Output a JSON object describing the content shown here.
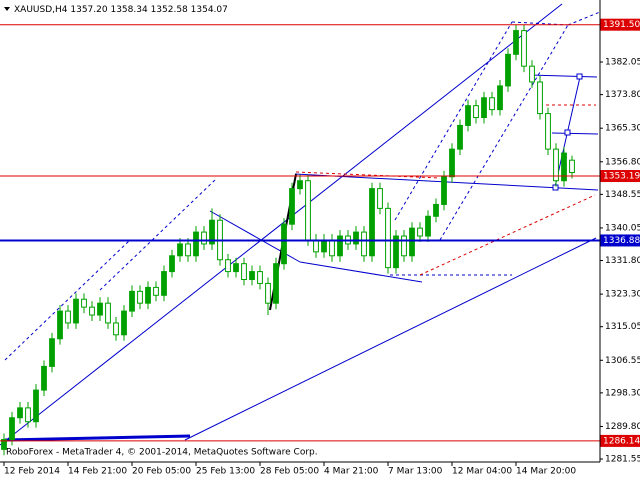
{
  "chart_data": {
    "type": "candlestick",
    "header": {
      "symbol": "XAUUSD,H4",
      "ohlc": [
        "1357.20",
        "1358.34",
        "1352.58",
        "1354.07"
      ]
    },
    "footer": "RoboForex - MetaTrader 4, © 2001-2014, MetaQuotes Software Corp.",
    "up_color": "#00a000",
    "down_color": "#ffffff",
    "wick_color": "#00a000",
    "xlim": [
      -0.5,
      74.5
    ],
    "xticks": [
      {
        "value": 0,
        "label": "12 Feb 2014"
      },
      {
        "value": 8,
        "label": "14 Feb 21:00"
      },
      {
        "value": 16,
        "label": "20 Feb 05:00"
      },
      {
        "value": 24,
        "label": "25 Feb 13:00"
      },
      {
        "value": 32,
        "label": "28 Feb 05:00"
      },
      {
        "value": 40,
        "label": "4 Mar 21:00"
      },
      {
        "value": 48,
        "label": "7 Mar 13:00"
      },
      {
        "value": 56,
        "label": "12 Mar 04:00"
      },
      {
        "value": 64,
        "label": "14 Mar 20:00"
      }
    ],
    "ylim": [
      1280.8,
      1397.75
    ],
    "yticks": [
      {
        "value": 1281.55,
        "label": "1281.55"
      },
      {
        "value": 1289.8,
        "label": "1289.80"
      },
      {
        "value": 1298.3,
        "label": "1298.30"
      },
      {
        "value": 1306.55,
        "label": "1306.55"
      },
      {
        "value": 1315.05,
        "label": "1315.05"
      },
      {
        "value": 1323.3,
        "label": "1323.30"
      },
      {
        "value": 1331.8,
        "label": "1331.80"
      },
      {
        "value": 1340.05,
        "label": "1340.05"
      },
      {
        "value": 1348.55,
        "label": "1348.55"
      },
      {
        "value": 1356.8,
        "label": "1356.80"
      },
      {
        "value": 1365.3,
        "label": "1365.30"
      },
      {
        "value": 1373.8,
        "label": "1373.80"
      },
      {
        "value": 1382.05,
        "label": "1382.05"
      }
    ],
    "levels": [
      {
        "value": 1391.5,
        "label": "1391.50",
        "color": "#dd0000",
        "box": "#dd0000",
        "text_color": "#ffffff"
      },
      {
        "value": 1353.19,
        "label": "1353.19",
        "color": "#dd0000",
        "box": "#dd0000",
        "text_color": "#ffffff"
      },
      {
        "value": 1336.88,
        "label": "1336.88",
        "color": "#0000cc",
        "box": "#0000cc",
        "text_color": "#ffffff"
      },
      {
        "value": 1286.14,
        "label": "1286.14",
        "color": "#dd0000",
        "box": "#dd0000",
        "text_color": "#ffffff"
      }
    ],
    "open": [
      1284,
      1286.5,
      1292,
      1294.5,
      1291,
      1299,
      1305,
      1312,
      1319,
      1316,
      1322,
      1320,
      1318,
      1321,
      1316,
      1313,
      1319,
      1324,
      1321,
      1325,
      1323,
      1329,
      1333,
      1336,
      1333,
      1339,
      1336,
      1342,
      1332,
      1329,
      1331,
      1327,
      1329,
      1326,
      1321,
      1331,
      1341,
      1350,
      1352,
      1337,
      1334,
      1337,
      1333,
      1338,
      1336,
      1339,
      1333,
      1350,
      1345,
      1330,
      1338,
      1333,
      1340,
      1338,
      1343,
      1346,
      1353,
      1360,
      1366,
      1371,
      1368,
      1373,
      1370,
      1376,
      1384,
      1390,
      1381,
      1377,
      1369,
      1360,
      1352,
      1357.2
    ],
    "high": [
      1288,
      1293.5,
      1296,
      1296,
      1300.5,
      1306.5,
      1313.5,
      1320.5,
      1320.5,
      1323.5,
      1323.5,
      1321.5,
      1322.5,
      1322.5,
      1317.5,
      1320.5,
      1325.5,
      1325.5,
      1326.5,
      1326.5,
      1330.5,
      1334.5,
      1337.5,
      1337.5,
      1340.5,
      1340.5,
      1345,
      1343.5,
      1333.5,
      1332.5,
      1332.5,
      1330.5,
      1330.5,
      1327.5,
      1332.5,
      1342.5,
      1351.5,
      1353.5,
      1353.5,
      1338.5,
      1338.5,
      1338.5,
      1339.5,
      1339.5,
      1340.5,
      1340.5,
      1351.5,
      1351.5,
      1346.5,
      1339.5,
      1339.5,
      1341.5,
      1341.5,
      1344.5,
      1347.5,
      1354.5,
      1361.5,
      1367.5,
      1372.5,
      1372.5,
      1374.5,
      1374.5,
      1377.5,
      1385.5,
      1391.5,
      1391.5,
      1382.5,
      1378.5,
      1370.5,
      1361.5,
      1360.5,
      1358.34
    ],
    "low": [
      1282.5,
      1285,
      1290.5,
      1289.5,
      1289.5,
      1297.5,
      1303.5,
      1310.5,
      1314.5,
      1314.5,
      1318.5,
      1316.5,
      1316.5,
      1314.5,
      1311.5,
      1311.5,
      1317.5,
      1319.5,
      1319.5,
      1321.5,
      1321.5,
      1327.5,
      1331.5,
      1331.5,
      1331.5,
      1334.5,
      1334.5,
      1330.5,
      1327.5,
      1327.5,
      1325.5,
      1325.5,
      1324.5,
      1318,
      1319.5,
      1329.5,
      1339.5,
      1348.5,
      1335.5,
      1332.5,
      1332.5,
      1331.5,
      1331.5,
      1334.5,
      1334.5,
      1331.5,
      1331.5,
      1343.5,
      1328.5,
      1328.5,
      1331.5,
      1331.5,
      1336.5,
      1336.5,
      1341.5,
      1344.5,
      1351.5,
      1358.5,
      1364.5,
      1366.5,
      1366.5,
      1368.5,
      1368.5,
      1374.5,
      1382.5,
      1379.5,
      1375.5,
      1367.5,
      1358.5,
      1350.5,
      1350.5,
      1352.58
    ],
    "close": [
      1286.5,
      1292,
      1294.5,
      1291,
      1299,
      1305,
      1312,
      1319,
      1316,
      1322,
      1320,
      1318,
      1321,
      1316,
      1313,
      1319,
      1324,
      1321,
      1325,
      1323,
      1329,
      1333,
      1336,
      1333,
      1339,
      1336,
      1342,
      1332,
      1329,
      1331,
      1327,
      1329,
      1326,
      1321,
      1331,
      1341,
      1350,
      1352,
      1337,
      1334,
      1337,
      1333,
      1338,
      1336,
      1339,
      1333,
      1350,
      1345,
      1330,
      1338,
      1333,
      1340,
      1338,
      1343,
      1346,
      1353,
      1360,
      1366,
      1371,
      1368,
      1373,
      1370,
      1376,
      1384,
      1390,
      1381,
      1377,
      1369,
      1360,
      1352,
      1359,
      1354.07
    ]
  }
}
